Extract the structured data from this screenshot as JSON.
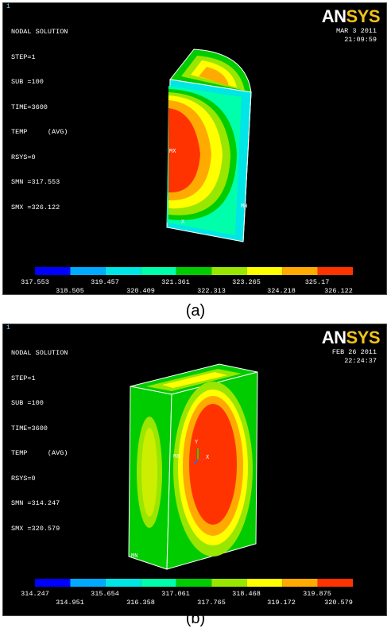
{
  "panels": [
    {
      "window_number": "1",
      "info_lines": [
        "NODAL SOLUTION",
        "STEP=1",
        "SUB =100",
        "TIME=3600",
        "TEMP     (AVG)",
        "RSYS=0",
        "SMN =317.553",
        "SMX =326.122"
      ],
      "logo_an": "AN",
      "logo_sys": "SYS",
      "date": "MAR  3 2011",
      "time": "21:09:59",
      "markers": {
        "mx": "MX",
        "mn": "MN",
        "axis": "X"
      },
      "legend_colors": [
        "#0000ff",
        "#00aaff",
        "#00e5e5",
        "#00ffaa",
        "#00cc00",
        "#99e600",
        "#ffff00",
        "#ffaa00",
        "#ff3300"
      ],
      "legend_top_labels": [
        "317.553",
        "319.457",
        "321.361",
        "323.265",
        "325.17"
      ],
      "legend_bottom_labels": [
        "318.505",
        "320.409",
        "322.313",
        "324.218",
        "326.122"
      ],
      "caption": "(a)"
    },
    {
      "window_number": "1",
      "info_lines": [
        "NODAL SOLUTION",
        "STEP=1",
        "SUB =100",
        "TIME=3600",
        "TEMP     (AVG)",
        "RSYS=0",
        "SMN =314.247",
        "SMX =320.579"
      ],
      "logo_an": "AN",
      "logo_sys": "SYS",
      "date": "FEB 26 2011",
      "time": "22:24:37",
      "markers": {
        "mx": "MX",
        "mn": "MN",
        "axis_y": "Y",
        "axis_x": "X"
      },
      "legend_colors": [
        "#0000ff",
        "#00aaff",
        "#00e5e5",
        "#00ffaa",
        "#00cc00",
        "#99e600",
        "#ffff00",
        "#ffaa00",
        "#ff3300"
      ],
      "legend_top_labels": [
        "314.247",
        "315.654",
        "317.061",
        "318.468",
        "319.875"
      ],
      "legend_bottom_labels": [
        "314.951",
        "316.358",
        "317.765",
        "319.172",
        "320.579"
      ],
      "caption": "(b)"
    }
  ]
}
